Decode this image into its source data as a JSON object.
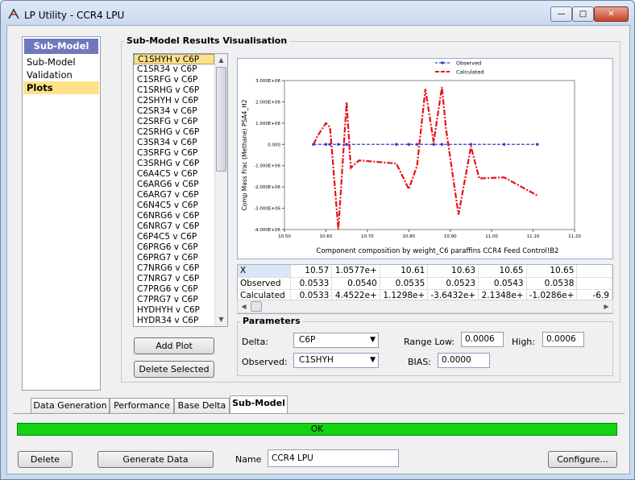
{
  "window": {
    "title": "LP Utility - CCR4 LPU",
    "minimize": "—",
    "maximize": "□",
    "close": "✕"
  },
  "nav": {
    "header": "Sub-Model",
    "items": [
      "Sub-Model",
      "Validation",
      "Plots"
    ],
    "selected": "Plots"
  },
  "results_group": {
    "title": "Sub-Model Results Visualisation"
  },
  "sub_list": {
    "selected": "C1SHYH v C6P",
    "items": [
      "C1SHYH v C6P",
      "C1SR34 v C6P",
      "C1SRFG v C6P",
      "C1SRHG v C6P",
      "C2SHYH v C6P",
      "C2SR34 v C6P",
      "C2SRFG v C6P",
      "C2SRHG v C6P",
      "C3SR34 v C6P",
      "C3SRFG v C6P",
      "C3SRHG v C6P",
      "C6A4C5 v C6P",
      "C6ARG6 v C6P",
      "C6ARG7 v C6P",
      "C6N4C5 v C6P",
      "C6NRG6 v C6P",
      "C6NRG7 v C6P",
      "C6P4C5 v C6P",
      "C6PRG6 v C6P",
      "C6PRG7 v C6P",
      "C7NRG6 v C6P",
      "C7NRG7 v C6P",
      "C7PRG6 v C6P",
      "C7PRG7 v C6P",
      "HYDHYH v C6P",
      "HYDR34 v C6P"
    ]
  },
  "buttons": {
    "add_plot": "Add Plot",
    "delete_selected": "Delete Selected",
    "delete": "Delete",
    "generate_data": "Generate Data",
    "configure": "Configure..."
  },
  "chart_data": {
    "type": "line",
    "title": "",
    "xlabel": "Component composition by weight_C6 paraffins CCR4 Feed Control!B2",
    "ylabel": "Comp Mass Frac (Methane) PSA4_H2",
    "xlim": [
      10.5,
      11.2
    ],
    "ylim": [
      -4000000,
      3000000
    ],
    "x_ticks": [
      "10.50",
      "10.60",
      "10.70",
      "10.80",
      "10.90",
      "11.00",
      "11.10",
      "11.20"
    ],
    "y_ticks": [
      "3.000E+06",
      "2.000E+06",
      "1.000E+06",
      "0.000",
      "-1.000E+06",
      "-2.000E+06",
      "-3.000E+06",
      "-4.000E+06"
    ],
    "legend_position": "top",
    "series": [
      {
        "name": "Observed",
        "color": "#3b3bd0",
        "x": [
          10.57,
          10.6,
          10.61,
          10.63,
          10.65,
          10.65,
          10.77,
          10.8,
          10.82,
          10.86,
          10.88,
          10.95,
          11.03,
          11.11
        ],
        "y": [
          0,
          0,
          0,
          0,
          0,
          0,
          0,
          0,
          0,
          0,
          0,
          0,
          0,
          0
        ]
      },
      {
        "name": "Calculated",
        "color": "#e8101a",
        "x": [
          10.57,
          10.58,
          10.6,
          10.61,
          10.63,
          10.65,
          10.66,
          10.68,
          10.77,
          10.8,
          10.82,
          10.84,
          10.86,
          10.88,
          10.89,
          10.92,
          10.95,
          10.97,
          11.03,
          11.11
        ],
        "y": [
          0,
          400000,
          1000000,
          800000,
          -4000000,
          2000000,
          -1100000,
          -750000,
          -900000,
          -2100000,
          -1000000,
          2600000,
          100000,
          2700000,
          700000,
          -3300000,
          -100000,
          -1600000,
          -1550000,
          -2400000
        ]
      }
    ]
  },
  "table": {
    "rows": [
      {
        "label": "X",
        "values": [
          "10.57",
          "1.0577e+",
          "10.61",
          "10.63",
          "10.65",
          "10.65",
          ""
        ]
      },
      {
        "label": "Observed",
        "values": [
          "0.0533",
          "0.0540",
          "0.0535",
          "0.0523",
          "0.0543",
          "0.0538",
          ""
        ]
      },
      {
        "label": "Calculated",
        "values": [
          "0.0533",
          "4.4522e+",
          "1.1298e+",
          "-3.6432e+",
          "2.1348e+",
          "-1.0286e+",
          "-6.9"
        ]
      }
    ]
  },
  "parameters": {
    "title": "Parameters",
    "delta_label": "Delta:",
    "delta_value": "C6P",
    "observed_label": "Observed:",
    "observed_value": "C1SHYH",
    "range_low_label": "Range Low:",
    "range_low_value": "0.0006",
    "high_label": "High:",
    "high_value": "0.0006",
    "bias_label": "BIAS:",
    "bias_value": "0.0000"
  },
  "tabs": [
    "Data Generation",
    "Performance",
    "Base Delta",
    "Sub-Model"
  ],
  "active_tab": "Sub-Model",
  "status": {
    "text": "OK",
    "color": "#13d313"
  },
  "footer": {
    "name_label": "Name",
    "name_value": "CCR4 LPU"
  }
}
